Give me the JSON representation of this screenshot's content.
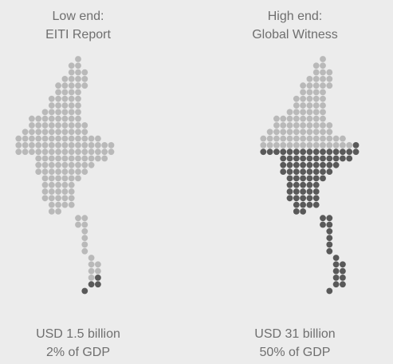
{
  "chart_data": [
    {
      "type": "waffle-map",
      "title_line1": "Low end:",
      "title_line2": "EITI Report",
      "value_label": "USD 1.5 billion",
      "share_label": "2% of GDP",
      "value_usd_billion": 1.5,
      "share_of_gdp_percent": 2,
      "colors": {
        "filled": "#595959",
        "empty": "#b9b9b9"
      }
    },
    {
      "type": "waffle-map",
      "title_line1": "High end:",
      "title_line2": "Global Witness",
      "value_label": "USD 31 billion",
      "share_label": "50% of GDP",
      "value_usd_billion": 31,
      "share_of_gdp_percent": 50,
      "colors": {
        "filled": "#595959",
        "empty": "#b9b9b9"
      }
    }
  ]
}
